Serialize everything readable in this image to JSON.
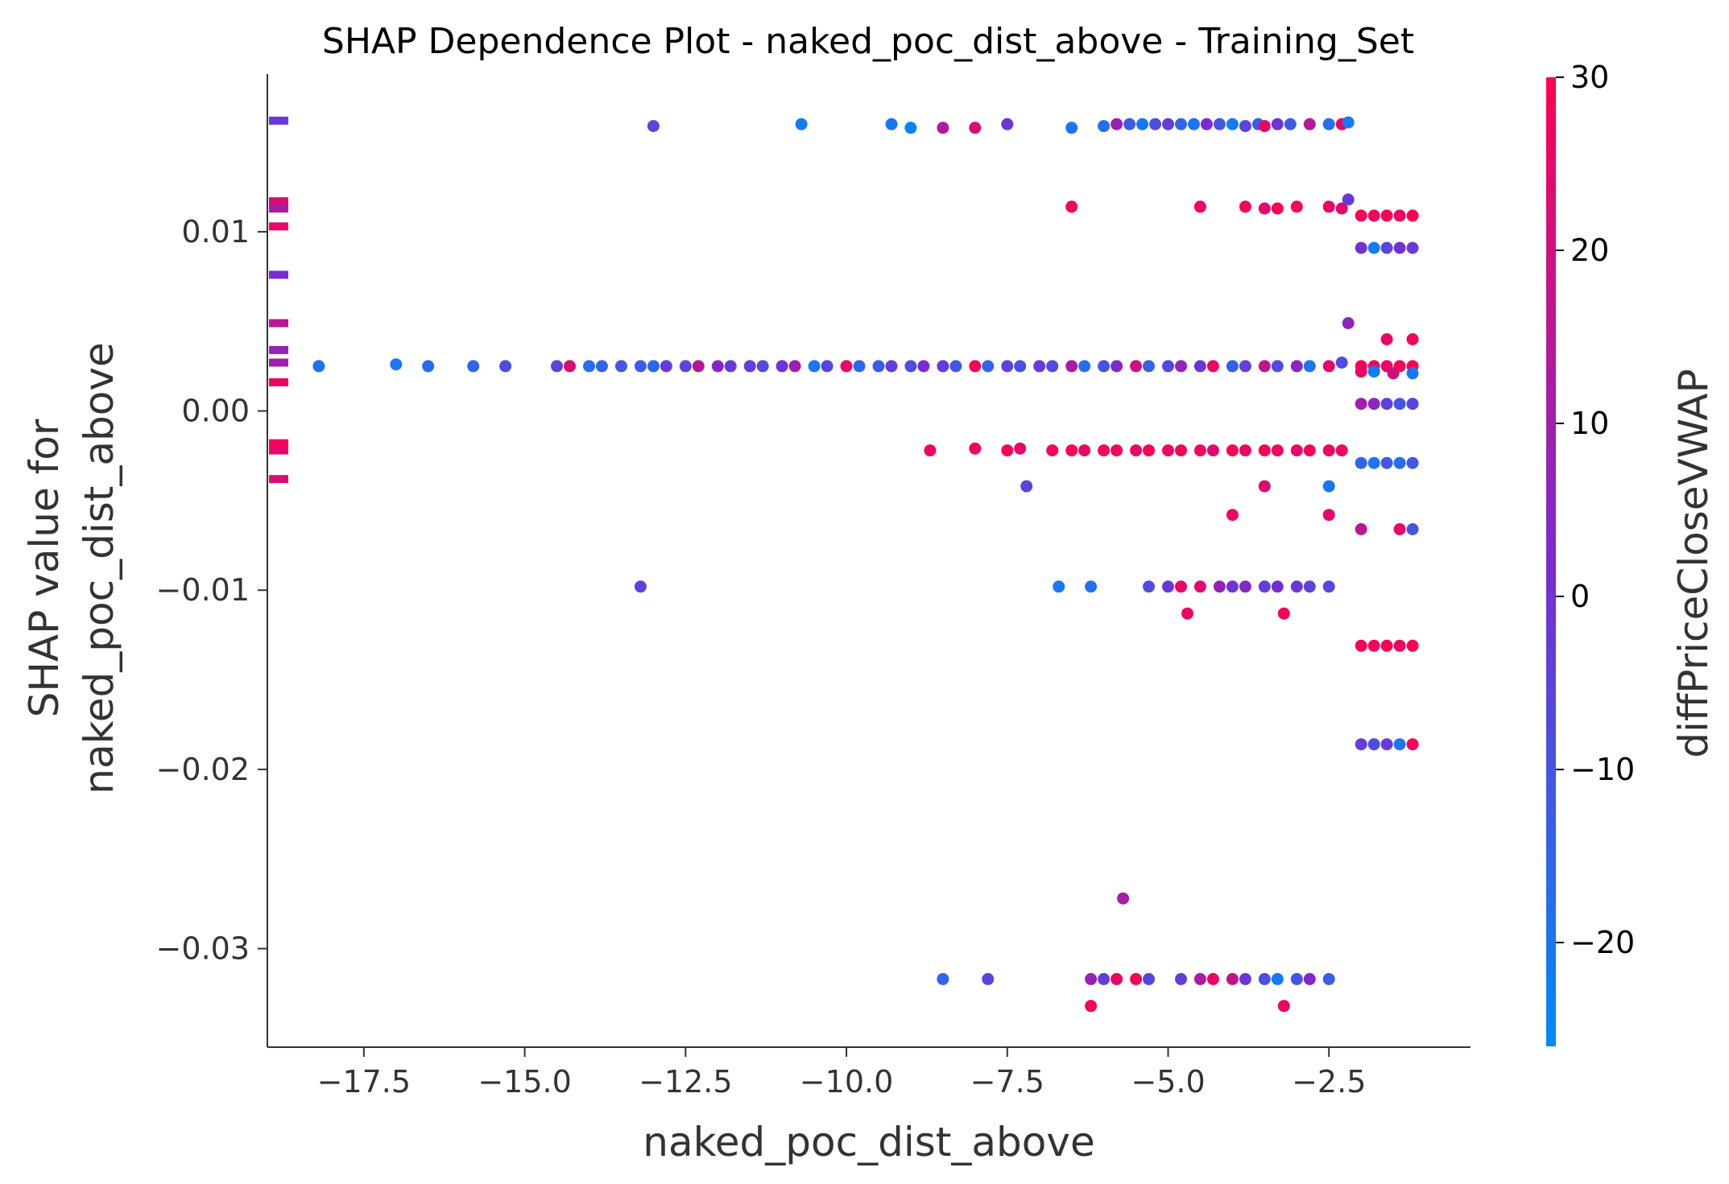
{
  "chart_data": {
    "type": "scatter",
    "title": "SHAP Dependence Plot - naked_poc_dist_above - Training_Set",
    "xlabel": "naked_poc_dist_above",
    "ylabel_line1": "SHAP value for",
    "ylabel_line2": "naked_poc_dist_above",
    "colorbar_label": "diffPriceCloseVWAP",
    "xlim": [
      -19.0,
      -0.3
    ],
    "ylim": [
      -0.0355,
      0.0188
    ],
    "x_ticks": [
      -17.5,
      -15.0,
      -12.5,
      -10.0,
      -7.5,
      -5.0,
      -2.5
    ],
    "x_tick_labels": [
      "−17.5",
      "−15.0",
      "−12.5",
      "−10.0",
      "−7.5",
      "−5.0",
      "−2.5"
    ],
    "y_ticks": [
      0.01,
      0.0,
      -0.01,
      -0.02,
      -0.03
    ],
    "y_tick_labels": [
      "0.01",
      "0.00",
      "−0.01",
      "−0.02",
      "−0.03"
    ],
    "color_scale": {
      "min": -26,
      "max": 30,
      "colors": [
        "#008afb",
        "#7a2bd1",
        "#ff0051"
      ]
    },
    "colorbar_ticks": [
      30,
      20,
      10,
      0,
      -10,
      -20
    ],
    "colorbar_tick_labels": [
      "30",
      "20",
      "10",
      "0",
      "−10",
      "−20"
    ],
    "grid": false,
    "points": [
      [
        -18.2,
        0.0025,
        -18
      ],
      [
        -17.0,
        0.0026,
        -20
      ],
      [
        -16.5,
        0.0025,
        -17
      ],
      [
        -15.8,
        0.0025,
        -15
      ],
      [
        -15.3,
        0.0025,
        -8
      ],
      [
        -14.5,
        0.0025,
        -5
      ],
      [
        -14.3,
        0.0025,
        22
      ],
      [
        -14.0,
        0.0025,
        -18
      ],
      [
        -13.8,
        0.0025,
        -14
      ],
      [
        -13.5,
        0.0025,
        -10
      ],
      [
        -13.2,
        0.0025,
        -12
      ],
      [
        -13.0,
        0.0025,
        -16
      ],
      [
        -12.8,
        0.0025,
        -3
      ],
      [
        -12.5,
        0.0025,
        -6
      ],
      [
        -12.3,
        0.0025,
        15
      ],
      [
        -12.0,
        0.0025,
        5
      ],
      [
        -11.8,
        0.0025,
        -2
      ],
      [
        -11.5,
        0.0025,
        -4
      ],
      [
        -11.3,
        0.0025,
        -7
      ],
      [
        -11.0,
        0.0025,
        -1
      ],
      [
        -10.8,
        0.0025,
        10
      ],
      [
        -10.5,
        0.0025,
        -20
      ],
      [
        -10.3,
        0.0025,
        -6
      ],
      [
        -10.0,
        0.0025,
        25
      ],
      [
        -9.8,
        0.0025,
        -16
      ],
      [
        -9.5,
        0.0025,
        -12
      ],
      [
        -9.3,
        0.0025,
        -4
      ],
      [
        -9.0,
        0.0025,
        -8
      ],
      [
        -8.8,
        0.0025,
        2
      ],
      [
        -8.5,
        0.0025,
        -3
      ],
      [
        -8.3,
        0.0025,
        -11
      ],
      [
        -8.0,
        0.0025,
        28
      ],
      [
        -7.8,
        0.0025,
        -15
      ],
      [
        -7.5,
        0.0025,
        -5
      ],
      [
        -7.3,
        0.0025,
        -9
      ],
      [
        -7.0,
        0.0025,
        -2
      ],
      [
        -6.8,
        0.0025,
        -7
      ],
      [
        -6.5,
        0.0025,
        12
      ],
      [
        -6.3,
        0.0025,
        -18
      ],
      [
        -6.0,
        0.0025,
        -10
      ],
      [
        -5.8,
        0.0025,
        3
      ],
      [
        -5.5,
        0.0025,
        20
      ],
      [
        -5.3,
        0.0025,
        -13
      ],
      [
        -5.0,
        0.0025,
        -6
      ],
      [
        -4.8,
        0.0025,
        8
      ],
      [
        -4.5,
        0.0025,
        -1
      ],
      [
        -4.3,
        0.0025,
        26
      ],
      [
        -4.0,
        0.0025,
        -14
      ],
      [
        -3.8,
        0.0025,
        -4
      ],
      [
        -3.5,
        0.0025,
        16
      ],
      [
        -3.3,
        0.0025,
        -8
      ],
      [
        -3.0,
        0.0025,
        6
      ],
      [
        -2.8,
        0.0025,
        -19
      ],
      [
        -2.5,
        0.0025,
        24
      ],
      [
        -2.3,
        0.0027,
        -7
      ],
      [
        -2.0,
        0.0025,
        29
      ],
      [
        -1.8,
        0.0025,
        27
      ],
      [
        -1.6,
        0.0025,
        25
      ],
      [
        -1.4,
        0.0025,
        28
      ],
      [
        -1.2,
        0.0025,
        30
      ],
      [
        -2.0,
        0.0022,
        26
      ],
      [
        -1.8,
        0.0022,
        -22
      ],
      [
        -1.5,
        0.0021,
        20
      ],
      [
        -1.2,
        0.0021,
        -20
      ],
      [
        -13.0,
        0.0159,
        -5
      ],
      [
        -10.7,
        0.016,
        -22
      ],
      [
        -9.3,
        0.016,
        -20
      ],
      [
        -9.0,
        0.0158,
        -24
      ],
      [
        -8.5,
        0.0158,
        14
      ],
      [
        -8.0,
        0.0158,
        22
      ],
      [
        -7.5,
        0.016,
        -1
      ],
      [
        -6.5,
        0.0158,
        -20
      ],
      [
        -6.0,
        0.0159,
        -18
      ],
      [
        -5.8,
        0.016,
        9
      ],
      [
        -5.6,
        0.016,
        -12
      ],
      [
        -5.4,
        0.016,
        -20
      ],
      [
        -5.2,
        0.016,
        -8
      ],
      [
        -5.0,
        0.016,
        -3
      ],
      [
        -4.8,
        0.016,
        -15
      ],
      [
        -4.6,
        0.016,
        -19
      ],
      [
        -4.4,
        0.016,
        2
      ],
      [
        -4.2,
        0.016,
        -10
      ],
      [
        -4.0,
        0.016,
        -22
      ],
      [
        -3.8,
        0.0159,
        -6
      ],
      [
        -3.6,
        0.016,
        -14
      ],
      [
        -3.5,
        0.0159,
        24
      ],
      [
        -3.3,
        0.016,
        -1
      ],
      [
        -3.1,
        0.016,
        -12
      ],
      [
        -2.8,
        0.016,
        15
      ],
      [
        -2.5,
        0.016,
        -18
      ],
      [
        -2.3,
        0.016,
        26
      ],
      [
        -2.2,
        0.0161,
        -22
      ],
      [
        -6.5,
        0.0114,
        27
      ],
      [
        -4.5,
        0.0114,
        26
      ],
      [
        -3.8,
        0.0114,
        28
      ],
      [
        -3.5,
        0.0113,
        25
      ],
      [
        -3.3,
        0.0113,
        29
      ],
      [
        -3.0,
        0.0114,
        27
      ],
      [
        -2.5,
        0.0114,
        26
      ],
      [
        -2.3,
        0.0113,
        24
      ],
      [
        -2.2,
        0.0118,
        -2
      ],
      [
        -2.0,
        0.0109,
        28
      ],
      [
        -1.8,
        0.0109,
        27
      ],
      [
        -1.6,
        0.0109,
        29
      ],
      [
        -1.4,
        0.0109,
        26
      ],
      [
        -1.2,
        0.0109,
        30
      ],
      [
        -2.0,
        0.0091,
        1
      ],
      [
        -1.8,
        0.0091,
        -22
      ],
      [
        -1.6,
        0.0091,
        -5
      ],
      [
        -1.4,
        0.0091,
        0
      ],
      [
        -1.2,
        0.0091,
        -3
      ],
      [
        -2.2,
        0.0049,
        6
      ],
      [
        -1.6,
        0.004,
        26
      ],
      [
        -1.2,
        0.004,
        28
      ],
      [
        -2.0,
        0.0004,
        10
      ],
      [
        -1.8,
        0.0004,
        6
      ],
      [
        -1.6,
        0.0004,
        -4
      ],
      [
        -1.4,
        0.0004,
        -10
      ],
      [
        -1.2,
        0.0004,
        -6
      ],
      [
        -8.7,
        -0.0022,
        27
      ],
      [
        -8.0,
        -0.0021,
        26
      ],
      [
        -7.5,
        -0.0022,
        28
      ],
      [
        -7.3,
        -0.0021,
        25
      ],
      [
        -6.8,
        -0.0022,
        27
      ],
      [
        -6.5,
        -0.0022,
        29
      ],
      [
        -6.3,
        -0.0022,
        26
      ],
      [
        -6.0,
        -0.0022,
        28
      ],
      [
        -5.8,
        -0.0022,
        27
      ],
      [
        -5.5,
        -0.0022,
        25
      ],
      [
        -5.3,
        -0.0022,
        29
      ],
      [
        -5.0,
        -0.0022,
        26
      ],
      [
        -4.8,
        -0.0022,
        28
      ],
      [
        -4.5,
        -0.0022,
        27
      ],
      [
        -4.3,
        -0.0022,
        24
      ],
      [
        -4.0,
        -0.0022,
        29
      ],
      [
        -3.8,
        -0.0022,
        26
      ],
      [
        -3.5,
        -0.0022,
        28
      ],
      [
        -3.3,
        -0.0022,
        27
      ],
      [
        -3.0,
        -0.0022,
        25
      ],
      [
        -2.8,
        -0.0022,
        29
      ],
      [
        -2.5,
        -0.0022,
        26
      ],
      [
        -2.3,
        -0.0022,
        27
      ],
      [
        -2.0,
        -0.0029,
        -15
      ],
      [
        -1.8,
        -0.0029,
        -20
      ],
      [
        -1.6,
        -0.0029,
        -10
      ],
      [
        -1.4,
        -0.0029,
        -18
      ],
      [
        -1.2,
        -0.0029,
        -12
      ],
      [
        -7.2,
        -0.0042,
        -5
      ],
      [
        -3.5,
        -0.0042,
        22
      ],
      [
        -2.5,
        -0.0042,
        -20
      ],
      [
        -4.0,
        -0.0058,
        26
      ],
      [
        -2.5,
        -0.0058,
        24
      ],
      [
        -2.0,
        -0.0066,
        15
      ],
      [
        -1.4,
        -0.0066,
        25
      ],
      [
        -1.2,
        -0.0066,
        -10
      ],
      [
        -13.2,
        -0.0098,
        -4
      ],
      [
        -6.7,
        -0.0098,
        -20
      ],
      [
        -6.2,
        -0.0098,
        -18
      ],
      [
        -5.3,
        -0.0098,
        -8
      ],
      [
        -5.0,
        -0.0098,
        -2
      ],
      [
        -4.8,
        -0.0098,
        26
      ],
      [
        -4.5,
        -0.0098,
        24
      ],
      [
        -4.2,
        -0.0098,
        8
      ],
      [
        -4.0,
        -0.0098,
        -1
      ],
      [
        -3.8,
        -0.0098,
        4
      ],
      [
        -3.5,
        -0.0098,
        -3
      ],
      [
        -3.3,
        -0.0098,
        1
      ],
      [
        -3.0,
        -0.0098,
        -2
      ],
      [
        -2.8,
        -0.0098,
        -5
      ],
      [
        -2.5,
        -0.0098,
        -6
      ],
      [
        -4.7,
        -0.0113,
        26
      ],
      [
        -3.2,
        -0.0113,
        27
      ],
      [
        -2.0,
        -0.0131,
        28
      ],
      [
        -1.8,
        -0.0131,
        27
      ],
      [
        -1.6,
        -0.0131,
        29
      ],
      [
        -1.4,
        -0.0131,
        26
      ],
      [
        -1.2,
        -0.0131,
        30
      ],
      [
        -2.0,
        -0.0186,
        -4
      ],
      [
        -1.8,
        -0.0186,
        -8
      ],
      [
        -1.6,
        -0.0186,
        -2
      ],
      [
        -1.4,
        -0.0186,
        -20
      ],
      [
        -1.2,
        -0.0186,
        28
      ],
      [
        -5.7,
        -0.0272,
        12
      ],
      [
        -8.5,
        -0.0317,
        -15
      ],
      [
        -7.8,
        -0.0317,
        -5
      ],
      [
        -6.2,
        -0.0317,
        8
      ],
      [
        -6.0,
        -0.0317,
        -3
      ],
      [
        -5.8,
        -0.0317,
        26
      ],
      [
        -5.5,
        -0.0317,
        28
      ],
      [
        -5.3,
        -0.0317,
        -6
      ],
      [
        -4.8,
        -0.0317,
        -4
      ],
      [
        -4.5,
        -0.0317,
        12
      ],
      [
        -4.3,
        -0.0317,
        27
      ],
      [
        -4.0,
        -0.0317,
        18
      ],
      [
        -3.8,
        -0.0317,
        -2
      ],
      [
        -3.5,
        -0.0317,
        -8
      ],
      [
        -3.3,
        -0.0317,
        -22
      ],
      [
        -3.0,
        -0.0317,
        -10
      ],
      [
        -2.8,
        -0.0317,
        4
      ],
      [
        -2.5,
        -0.0317,
        -12
      ],
      [
        -6.2,
        -0.0332,
        28
      ],
      [
        -3.2,
        -0.0332,
        26
      ]
    ],
    "marginal_histogram": [
      {
        "y": 0.0162,
        "value": -2
      },
      {
        "y": 0.0117,
        "value": 22
      },
      {
        "y": 0.0113,
        "value": 12
      },
      {
        "y": 0.0103,
        "value": 25
      },
      {
        "y": 0.0076,
        "value": 2
      },
      {
        "y": 0.0049,
        "value": 15
      },
      {
        "y": 0.0034,
        "value": 8
      },
      {
        "y": 0.0027,
        "value": 10
      },
      {
        "y": 0.0016,
        "value": 26
      },
      {
        "y": -0.0018,
        "value": 28
      },
      {
        "y": -0.0022,
        "value": 24
      },
      {
        "y": -0.0038,
        "value": 22
      }
    ]
  }
}
